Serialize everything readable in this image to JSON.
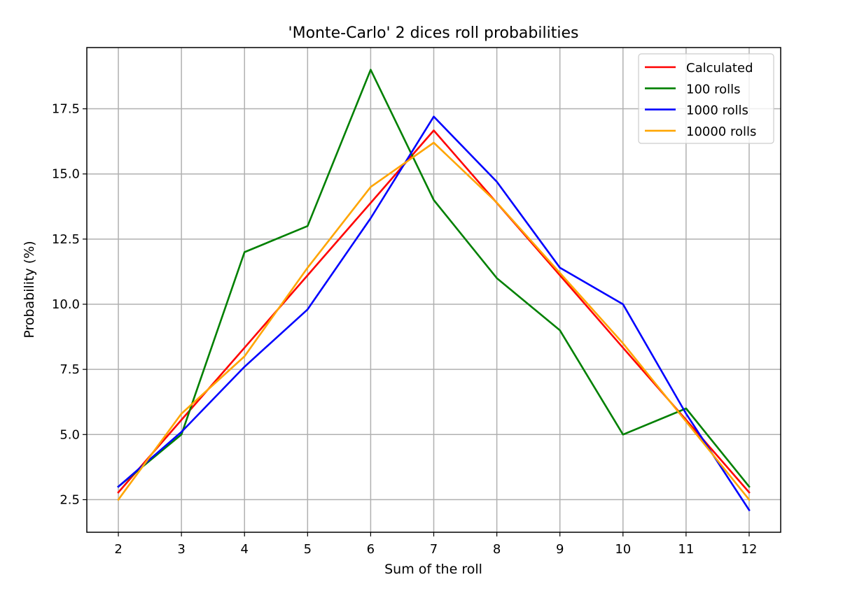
{
  "chart_data": {
    "type": "line",
    "title": "'Monte-Carlo' 2 dices roll probabilities",
    "xlabel": "Sum of the roll",
    "ylabel": "Probability (%)",
    "x": [
      2,
      3,
      4,
      5,
      6,
      7,
      8,
      9,
      10,
      11,
      12
    ],
    "xticks": [
      "2",
      "3",
      "4",
      "5",
      "6",
      "7",
      "8",
      "9",
      "10",
      "11",
      "12"
    ],
    "xlim": [
      1.5,
      12.5
    ],
    "yticks": [
      "2.5",
      "5.0",
      "7.5",
      "10.0",
      "12.5",
      "15.0",
      "17.5"
    ],
    "ylim": [
      1.25,
      19.85
    ],
    "grid": true,
    "legend_position": "top-right",
    "series": [
      {
        "name": "Calculated",
        "color": "#ff0000",
        "values": [
          2.78,
          5.56,
          8.33,
          11.11,
          13.89,
          16.67,
          13.89,
          11.11,
          8.33,
          5.56,
          2.78
        ]
      },
      {
        "name": "100 rolls",
        "color": "#008000",
        "values": [
          3.0,
          5.0,
          12.0,
          13.0,
          19.0,
          14.0,
          11.0,
          9.0,
          5.0,
          6.0,
          3.0
        ]
      },
      {
        "name": "1000 rolls",
        "color": "#0000ff",
        "values": [
          3.0,
          5.1,
          7.6,
          9.8,
          13.3,
          17.2,
          14.7,
          11.4,
          10.0,
          5.8,
          2.1
        ]
      },
      {
        "name": "10000 rolls",
        "color": "#ffa500",
        "values": [
          2.5,
          5.8,
          8.0,
          11.4,
          14.5,
          16.2,
          13.9,
          11.2,
          8.5,
          5.5,
          2.5
        ]
      }
    ]
  }
}
